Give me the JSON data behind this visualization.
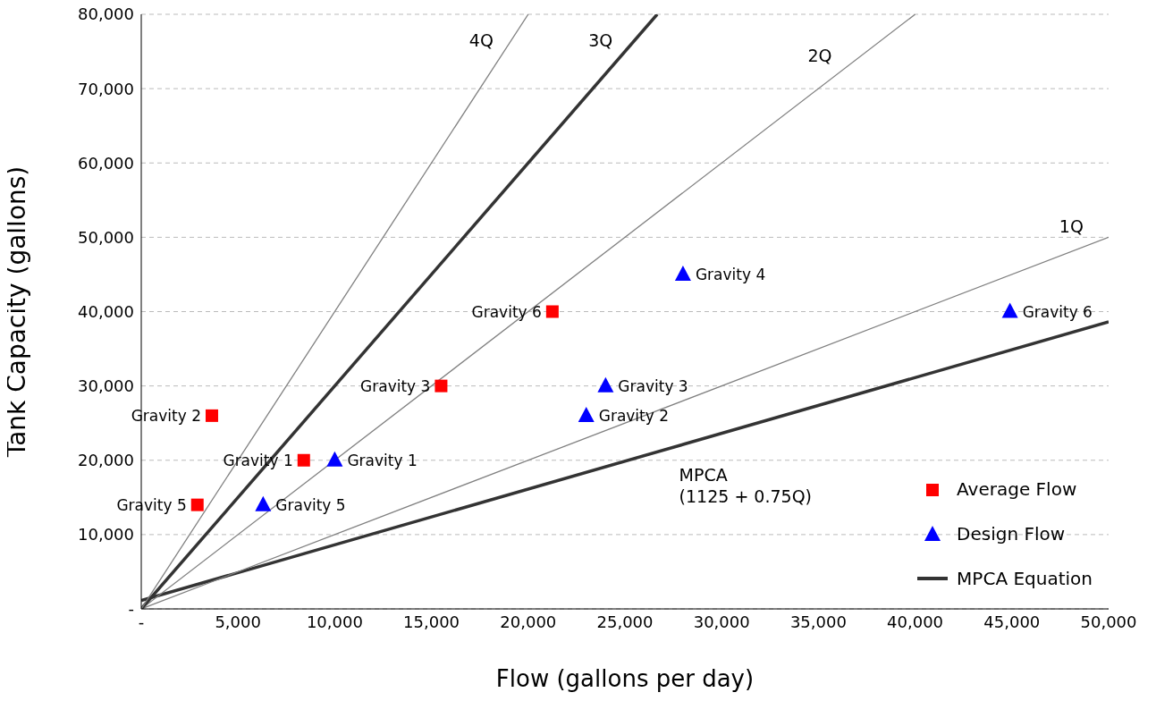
{
  "chart_data": {
    "type": "scatter",
    "xlabel": "Flow (gallons per day)",
    "ylabel": "Tank Capacity (gallons)",
    "xlim": [
      0,
      50000
    ],
    "ylim": [
      0,
      80000
    ],
    "xticks": [
      {
        "value": 0,
        "label": "-"
      },
      {
        "value": 5000,
        "label": "5,000"
      },
      {
        "value": 10000,
        "label": "10,000"
      },
      {
        "value": 15000,
        "label": "15,000"
      },
      {
        "value": 20000,
        "label": "20,000"
      },
      {
        "value": 25000,
        "label": "25,000"
      },
      {
        "value": 30000,
        "label": "30,000"
      },
      {
        "value": 35000,
        "label": "35,000"
      },
      {
        "value": 40000,
        "label": "40,000"
      },
      {
        "value": 45000,
        "label": "45,000"
      },
      {
        "value": 50000,
        "label": "50,000"
      }
    ],
    "yticks": [
      {
        "value": 0,
        "label": "-"
      },
      {
        "value": 10000,
        "label": "10,000"
      },
      {
        "value": 20000,
        "label": "20,000"
      },
      {
        "value": 30000,
        "label": "30,000"
      },
      {
        "value": 40000,
        "label": "40,000"
      },
      {
        "value": 50000,
        "label": "50,000"
      },
      {
        "value": 60000,
        "label": "60,000"
      },
      {
        "value": 70000,
        "label": "70,000"
      },
      {
        "value": 80000,
        "label": "80,000"
      }
    ],
    "grid": "y",
    "legend": "bottom right",
    "series": [
      {
        "name": "Average Flow",
        "marker": "square",
        "color": "#ff0000",
        "x": [
          3650,
          8400,
          2900,
          15500,
          21250
        ],
        "values": [
          26000,
          20000,
          14000,
          30000,
          40000
        ]
      },
      {
        "name": "Design Flow",
        "marker": "triangle",
        "color": "#0000ff",
        "x": [
          10000,
          6300,
          23000,
          24000,
          28000,
          44900
        ],
        "values": [
          20000,
          14000,
          26000,
          30000,
          45000,
          40000
        ]
      },
      {
        "name": "MPCA Equation",
        "type": "line",
        "color": "#333333",
        "x": [
          0,
          50000
        ],
        "values": [
          1125,
          38625
        ]
      },
      {
        "type": "line",
        "color": "#808080",
        "x": [
          0,
          50000
        ],
        "values": [
          0,
          50000
        ]
      },
      {
        "type": "line",
        "color": "#808080",
        "x": [
          0,
          40000
        ],
        "values": [
          0,
          80000
        ]
      },
      {
        "type": "line",
        "color": "#333333",
        "x": [
          0,
          26667
        ],
        "values": [
          0,
          80000
        ]
      },
      {
        "type": "line",
        "color": "#808080",
        "x": [
          0,
          20000
        ],
        "values": [
          0,
          80000
        ]
      }
    ],
    "annotations": [
      {
        "text": "Gravity 2",
        "x": 3650,
        "y": 26000
      },
      {
        "text": "Gravity 1",
        "x": 8400,
        "y": 20000
      },
      {
        "text": "Gravity 5",
        "x": 2900,
        "y": 14000
      },
      {
        "text": "Gravity 3",
        "x": 15500,
        "y": 30000
      },
      {
        "text": "Gravity 6",
        "x": 21250,
        "y": 40000
      },
      {
        "text": "Gravity 1",
        "x": 10000,
        "y": 20000
      },
      {
        "text": "Gravity 5",
        "x": 6300,
        "y": 14000
      },
      {
        "text": "Gravity 2",
        "x": 23000,
        "y": 26000
      },
      {
        "text": "Gravity 3",
        "x": 24000,
        "y": 30000
      },
      {
        "text": "Gravity 4",
        "x": 28000,
        "y": 45000
      },
      {
        "text": "Gravity 6",
        "x": 44900,
        "y": 40000
      },
      {
        "text": "4Q",
        "x": 18500,
        "y": 74000
      },
      {
        "text": "3Q",
        "x": 24667,
        "y": 74000
      },
      {
        "text": "2Q",
        "x": 36000,
        "y": 72000
      },
      {
        "text": "1Q",
        "x": 49000,
        "y": 49000
      },
      "MPCA\n(1125 + 0.75Q)"
    ]
  }
}
